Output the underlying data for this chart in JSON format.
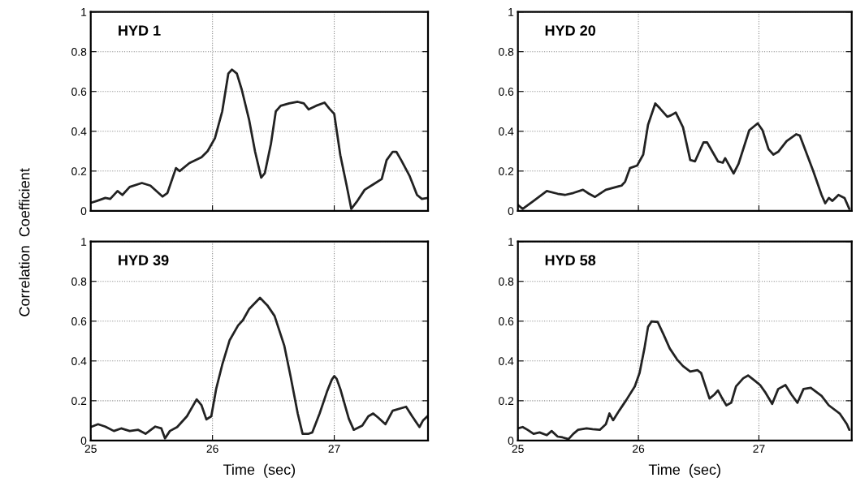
{
  "chart_data": [
    {
      "type": "line",
      "title": "HYD 1",
      "ylabel": "Correlation  Coefficient",
      "xlim": [
        25,
        27.77
      ],
      "ylim": [
        0,
        1
      ],
      "xticks": [
        25,
        26,
        27
      ],
      "yticks": [
        0,
        0.2,
        0.4,
        0.6,
        0.8,
        1
      ],
      "grid": true,
      "tick_labels": "y",
      "line_style": "solid",
      "marker": "none",
      "series": [
        {
          "color": "#222222",
          "x": [
            25.0,
            25.05,
            25.12,
            25.16,
            25.22,
            25.26,
            25.32,
            25.42,
            25.49,
            25.59,
            25.63,
            25.7,
            25.73,
            25.81,
            25.91,
            25.96,
            26.02,
            26.08,
            26.13,
            26.16,
            26.2,
            26.24,
            26.3,
            26.35,
            26.4,
            26.43,
            26.48,
            26.52,
            26.56,
            26.63,
            26.7,
            26.75,
            26.79,
            26.85,
            26.92,
            26.96,
            27.0,
            27.05,
            27.1,
            27.14,
            27.19,
            27.25,
            27.32,
            27.39,
            27.43,
            27.48,
            27.51,
            27.55,
            27.62,
            27.68,
            27.72,
            27.77
          ],
          "values": [
            0.04,
            0.05,
            0.065,
            0.06,
            0.1,
            0.08,
            0.12,
            0.14,
            0.127,
            0.072,
            0.09,
            0.215,
            0.2,
            0.24,
            0.27,
            0.3,
            0.365,
            0.5,
            0.69,
            0.71,
            0.69,
            0.61,
            0.46,
            0.297,
            0.167,
            0.19,
            0.337,
            0.5,
            0.528,
            0.54,
            0.548,
            0.54,
            0.51,
            0.528,
            0.544,
            0.514,
            0.487,
            0.28,
            0.133,
            0.01,
            0.05,
            0.106,
            0.133,
            0.16,
            0.255,
            0.297,
            0.297,
            0.255,
            0.174,
            0.08,
            0.06,
            0.065
          ]
        }
      ]
    },
    {
      "type": "line",
      "title": "HYD 20",
      "xlim": [
        25,
        27.77
      ],
      "ylim": [
        0,
        1
      ],
      "xticks": [
        25,
        26,
        27
      ],
      "yticks": [
        0,
        0.2,
        0.4,
        0.6,
        0.8,
        1
      ],
      "grid": true,
      "tick_labels": "y",
      "line_style": "solid",
      "marker": "none",
      "series": [
        {
          "color": "#222222",
          "x": [
            25.0,
            25.04,
            25.13,
            25.24,
            25.33,
            25.39,
            25.46,
            25.54,
            25.59,
            25.64,
            25.73,
            25.86,
            25.89,
            25.93,
            25.99,
            26.04,
            26.08,
            26.14,
            26.18,
            26.24,
            26.27,
            26.31,
            26.37,
            26.43,
            26.47,
            26.54,
            26.57,
            26.66,
            26.7,
            26.72,
            26.79,
            26.83,
            26.92,
            26.99,
            27.03,
            27.08,
            27.12,
            27.16,
            27.23,
            27.31,
            27.34,
            27.45,
            27.52,
            27.55,
            27.58,
            27.61,
            27.66,
            27.71,
            27.75
          ],
          "values": [
            0.03,
            0.01,
            0.05,
            0.1,
            0.086,
            0.08,
            0.09,
            0.106,
            0.086,
            0.07,
            0.106,
            0.127,
            0.147,
            0.215,
            0.228,
            0.283,
            0.433,
            0.54,
            0.514,
            0.473,
            0.48,
            0.494,
            0.42,
            0.256,
            0.249,
            0.344,
            0.344,
            0.249,
            0.242,
            0.265,
            0.188,
            0.235,
            0.405,
            0.44,
            0.405,
            0.31,
            0.283,
            0.297,
            0.351,
            0.385,
            0.378,
            0.201,
            0.08,
            0.038,
            0.065,
            0.05,
            0.08,
            0.065,
            0.01
          ]
        }
      ]
    },
    {
      "type": "line",
      "title": "HYD 39",
      "xlabel": "Time  (sec)",
      "xlim": [
        25,
        27.77
      ],
      "ylim": [
        0,
        1
      ],
      "xticks": [
        25,
        26,
        27
      ],
      "yticks": [
        0,
        0.2,
        0.4,
        0.6,
        0.8,
        1
      ],
      "grid": true,
      "line_style": "solid",
      "marker": "none",
      "series": [
        {
          "color": "#222222",
          "x": [
            25.0,
            25.06,
            25.12,
            25.19,
            25.25,
            25.32,
            25.39,
            25.45,
            25.53,
            25.58,
            25.61,
            25.65,
            25.71,
            25.79,
            25.87,
            25.91,
            25.95,
            25.99,
            26.03,
            26.08,
            26.14,
            26.21,
            26.25,
            26.3,
            26.39,
            26.45,
            26.51,
            26.59,
            26.64,
            26.7,
            26.74,
            26.79,
            26.82,
            26.88,
            26.94,
            26.98,
            27.0,
            27.02,
            27.05,
            27.12,
            27.16,
            27.23,
            27.28,
            27.32,
            27.36,
            27.42,
            27.48,
            27.59,
            27.64,
            27.7,
            27.73,
            27.77
          ],
          "values": [
            0.068,
            0.082,
            0.07,
            0.048,
            0.061,
            0.048,
            0.054,
            0.034,
            0.07,
            0.061,
            0.011,
            0.048,
            0.068,
            0.122,
            0.207,
            0.177,
            0.106,
            0.122,
            0.259,
            0.381,
            0.503,
            0.578,
            0.605,
            0.66,
            0.717,
            0.68,
            0.626,
            0.476,
            0.327,
            0.136,
            0.034,
            0.034,
            0.041,
            0.136,
            0.245,
            0.306,
            0.324,
            0.31,
            0.259,
            0.109,
            0.054,
            0.075,
            0.122,
            0.136,
            0.116,
            0.082,
            0.15,
            0.17,
            0.122,
            0.068,
            0.102,
            0.125
          ]
        }
      ]
    },
    {
      "type": "line",
      "title": "HYD 58",
      "xlabel": "Time  (sec)",
      "xlim": [
        25,
        27.77
      ],
      "ylim": [
        0,
        1
      ],
      "xticks": [
        25,
        26,
        27
      ],
      "yticks": [
        0,
        0.2,
        0.4,
        0.6,
        0.8,
        1
      ],
      "grid": true,
      "line_style": "solid",
      "marker": "none",
      "series": [
        {
          "color": "#222222",
          "x": [
            25.0,
            25.04,
            25.08,
            25.13,
            25.18,
            25.24,
            25.28,
            25.33,
            25.37,
            25.42,
            25.46,
            25.5,
            25.57,
            25.62,
            25.68,
            25.73,
            25.76,
            25.79,
            25.84,
            25.9,
            25.97,
            26.01,
            26.05,
            26.08,
            26.11,
            26.16,
            26.21,
            26.26,
            26.32,
            26.37,
            26.43,
            26.49,
            26.52,
            26.59,
            26.63,
            26.66,
            26.69,
            26.73,
            26.77,
            26.81,
            26.87,
            26.91,
            26.97,
            27.01,
            27.05,
            27.11,
            27.16,
            27.22,
            27.27,
            27.32,
            27.37,
            27.43,
            27.52,
            27.58,
            27.67,
            27.73,
            27.75
          ],
          "values": [
            0.061,
            0.068,
            0.054,
            0.034,
            0.041,
            0.027,
            0.048,
            0.02,
            0.016,
            0.007,
            0.034,
            0.054,
            0.061,
            0.057,
            0.054,
            0.082,
            0.136,
            0.102,
            0.15,
            0.204,
            0.272,
            0.34,
            0.463,
            0.571,
            0.599,
            0.596,
            0.531,
            0.463,
            0.408,
            0.374,
            0.347,
            0.354,
            0.34,
            0.211,
            0.231,
            0.252,
            0.218,
            0.177,
            0.19,
            0.272,
            0.313,
            0.327,
            0.299,
            0.279,
            0.245,
            0.184,
            0.259,
            0.279,
            0.231,
            0.19,
            0.259,
            0.265,
            0.224,
            0.177,
            0.136,
            0.082,
            0.054
          ]
        }
      ]
    }
  ]
}
